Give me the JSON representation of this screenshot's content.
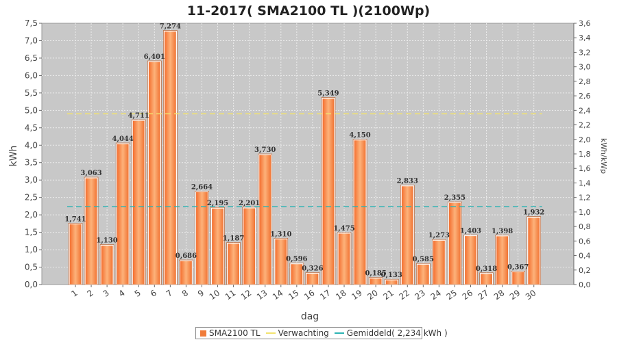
{
  "chart_data": {
    "type": "bar",
    "title": "11-2017( SMA2100 TL )(2100Wp)",
    "xlabel": "dag",
    "ylabel": "kWh",
    "y2label": "kWh/kWp",
    "ylim": [
      0,
      7.5
    ],
    "y2lim": [
      0,
      3.6
    ],
    "yticks": [
      "0,0",
      "0,5",
      "1,0",
      "1,5",
      "2,0",
      "2,5",
      "3,0",
      "3,5",
      "4,0",
      "4,5",
      "5,0",
      "5,5",
      "6,0",
      "6,5",
      "7,0",
      "7,5"
    ],
    "y2ticks": [
      "0,0",
      "0,2",
      "0,4",
      "0,6",
      "0,8",
      "1,0",
      "1,2",
      "1,4",
      "1,6",
      "1,8",
      "2,0",
      "2,2",
      "2,4",
      "2,6",
      "2,8",
      "3,0",
      "3,2",
      "3,4",
      "3,6"
    ],
    "categories": [
      "1",
      "2",
      "3",
      "4",
      "5",
      "6",
      "7",
      "8",
      "9",
      "10",
      "11",
      "12",
      "13",
      "14",
      "15",
      "16",
      "17",
      "18",
      "19",
      "20",
      "21",
      "22",
      "23",
      "24",
      "25",
      "26",
      "27",
      "28",
      "29",
      "30"
    ],
    "values": [
      1.741,
      3.063,
      1.13,
      4.044,
      4.711,
      6.401,
      7.274,
      0.686,
      2.664,
      2.195,
      1.187,
      2.201,
      3.73,
      1.31,
      0.596,
      0.326,
      5.349,
      1.475,
      4.15,
      0.185,
      0.133,
      2.833,
      0.585,
      1.273,
      2.355,
      1.403,
      0.318,
      1.398,
      0.367,
      1.932
    ],
    "value_labels": [
      "1,741",
      "3,063",
      "1,130",
      "4,044",
      "4,711",
      "6,401",
      "7,274",
      "0,686",
      "2,664",
      "2,195",
      "1,187",
      "2,201",
      "3,730",
      "1,310",
      "0,596",
      "0,326",
      "5,349",
      "1,475",
      "4,150",
      "0,185",
      "0,133",
      "2,833",
      "0,585",
      "1,273",
      "2,355",
      "1,403",
      "0,318",
      "1,398",
      "0,367",
      "1,932"
    ],
    "series": [
      {
        "name": "SMA2100 TL",
        "kind": "bar",
        "color": "#f07c3a"
      },
      {
        "name": "Verwachting",
        "kind": "line",
        "value": 4.9,
        "color": "#f2e36e"
      },
      {
        "name": "Gemiddeld( 2,234 kWh )",
        "kind": "line",
        "value": 2.234,
        "color": "#2bb3b3"
      }
    ],
    "grid": true,
    "legend_position": "bottom"
  }
}
